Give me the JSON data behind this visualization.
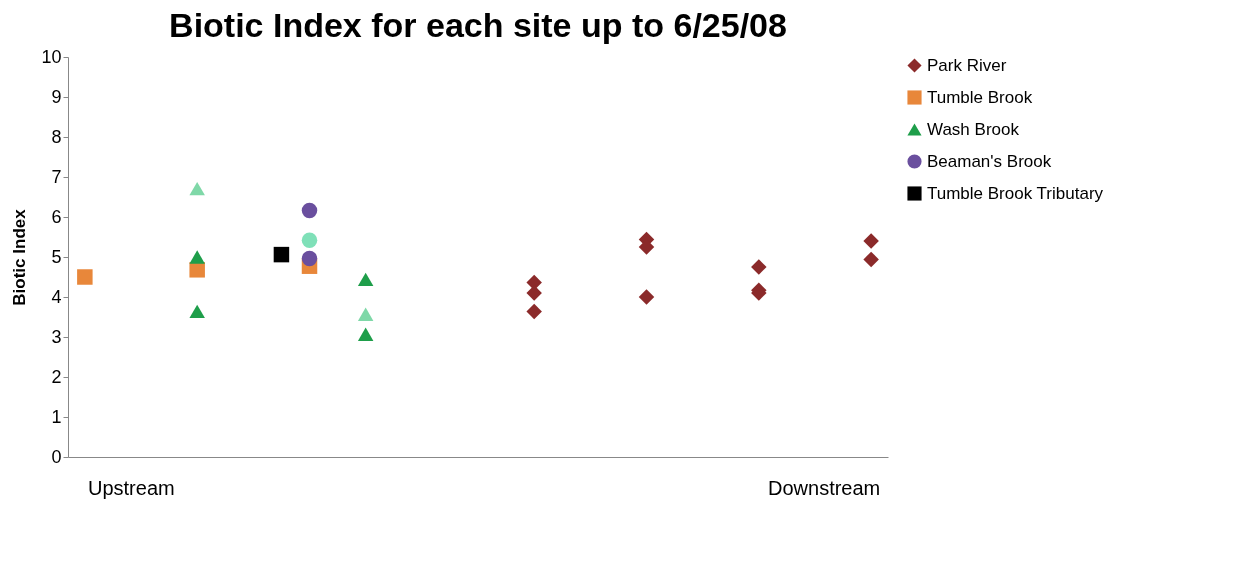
{
  "chart_data": {
    "type": "scatter",
    "title": "Biotic Index for each site up to 6/25/08",
    "ylabel": "Biotic Index",
    "ylim": [
      0,
      10
    ],
    "yticks": [
      0,
      1,
      2,
      3,
      4,
      5,
      6,
      7,
      8,
      9,
      10
    ],
    "grid": false,
    "legend": "right",
    "annotations": [
      "Upstream",
      "Downstream"
    ],
    "categories": [
      null,
      null,
      null,
      null,
      null,
      null,
      null,
      null,
      null,
      null,
      null,
      null,
      null,
      null,
      null,
      null,
      null,
      null,
      null,
      null,
      null,
      null,
      null,
      null,
      null,
      null,
      null,
      null,
      null
    ],
    "series": [
      {
        "name": "Park River",
        "color": "#8b2a2a",
        "marker": "diamond",
        "values": [
          null,
          null,
          null,
          null,
          null,
          null,
          null,
          null,
          null,
          null,
          null,
          null,
          null,
          null,
          null,
          null,
          4.36,
          null,
          null,
          null,
          5.44,
          null,
          null,
          null,
          4.75,
          null,
          null,
          null,
          5.4
        ]
      },
      {
        "color": "#8b2a2a",
        "marker": "diamond",
        "values": [
          null,
          null,
          null,
          null,
          null,
          null,
          null,
          null,
          null,
          null,
          null,
          null,
          null,
          null,
          null,
          null,
          4.1,
          null,
          null,
          null,
          5.25,
          null,
          null,
          null,
          4.17,
          null,
          null,
          null,
          4.94
        ]
      },
      {
        "color": "#8b2a2a",
        "marker": "diamond",
        "values": [
          null,
          null,
          null,
          null,
          null,
          null,
          null,
          null,
          null,
          null,
          null,
          null,
          null,
          null,
          null,
          null,
          3.64,
          null,
          null,
          null,
          4.0,
          null,
          null,
          null,
          4.1,
          null,
          null,
          null,
          null
        ]
      },
      {
        "name": "Tumble Brook",
        "color": "#e8873a",
        "marker": "square",
        "values": [
          4.5,
          null,
          null,
          null,
          4.68,
          null,
          null,
          null,
          4.77,
          null,
          null,
          null,
          null,
          null,
          null,
          null,
          null,
          null,
          null,
          null,
          null,
          null,
          null,
          null,
          null,
          null,
          null,
          null,
          null
        ]
      },
      {
        "name": "Wash Brook",
        "color": "#1e9e4a",
        "marker": "triangle",
        "values": [
          null,
          null,
          null,
          null,
          5.0,
          null,
          null,
          null,
          null,
          null,
          4.44,
          null,
          null,
          null,
          null,
          null,
          null,
          null,
          null,
          null,
          null,
          null,
          null,
          null,
          null,
          null,
          null,
          null,
          null
        ]
      },
      {
        "color": "#1e9e4a",
        "marker": "triangle",
        "values": [
          null,
          null,
          null,
          null,
          3.64,
          null,
          null,
          null,
          null,
          null,
          3.07,
          null,
          null,
          null,
          null,
          null,
          null,
          null,
          null,
          null,
          null,
          null,
          null,
          null,
          null,
          null,
          null,
          null,
          null
        ]
      },
      {
        "name": "Beaman's Brook",
        "color": "#6a4f9e",
        "marker": "circle",
        "values": [
          null,
          null,
          null,
          null,
          null,
          null,
          null,
          null,
          6.16,
          null,
          null,
          null,
          null,
          null,
          null,
          null,
          null,
          null,
          null,
          null,
          null,
          null,
          null,
          null,
          null,
          null,
          null,
          null,
          null
        ]
      },
      {
        "color": "#6a4f9e",
        "marker": "circle",
        "values": [
          null,
          null,
          null,
          null,
          null,
          null,
          null,
          null,
          4.96,
          null,
          null,
          null,
          null,
          null,
          null,
          null,
          null,
          null,
          null,
          null,
          null,
          null,
          null,
          null,
          null,
          null,
          null,
          null,
          null
        ]
      },
      {
        "name": "Tumble Brook Tributary",
        "color": "#000000",
        "marker": "square",
        "values": [
          null,
          null,
          null,
          null,
          null,
          null,
          null,
          5.06,
          null,
          null,
          null,
          null,
          null,
          null,
          null,
          null,
          null,
          null,
          null,
          null,
          null,
          null,
          null,
          null,
          null,
          null,
          null,
          null,
          null
        ]
      },
      {
        "color": "#7fd8a8",
        "marker": "triangle",
        "values": [
          null,
          null,
          null,
          null,
          6.71,
          null,
          null,
          null,
          null,
          null,
          3.57,
          null,
          null,
          null,
          null,
          null,
          null,
          null,
          null,
          null,
          null,
          null,
          null,
          null,
          null,
          null,
          null,
          null,
          null
        ]
      },
      {
        "color": "#7fe0b8",
        "marker": "circle",
        "values": [
          null,
          null,
          null,
          null,
          null,
          null,
          null,
          null,
          5.42,
          null,
          null,
          null,
          null,
          null,
          null,
          null,
          null,
          null,
          null,
          null,
          null,
          null,
          null,
          null,
          null,
          null,
          null,
          null,
          null
        ]
      }
    ]
  }
}
